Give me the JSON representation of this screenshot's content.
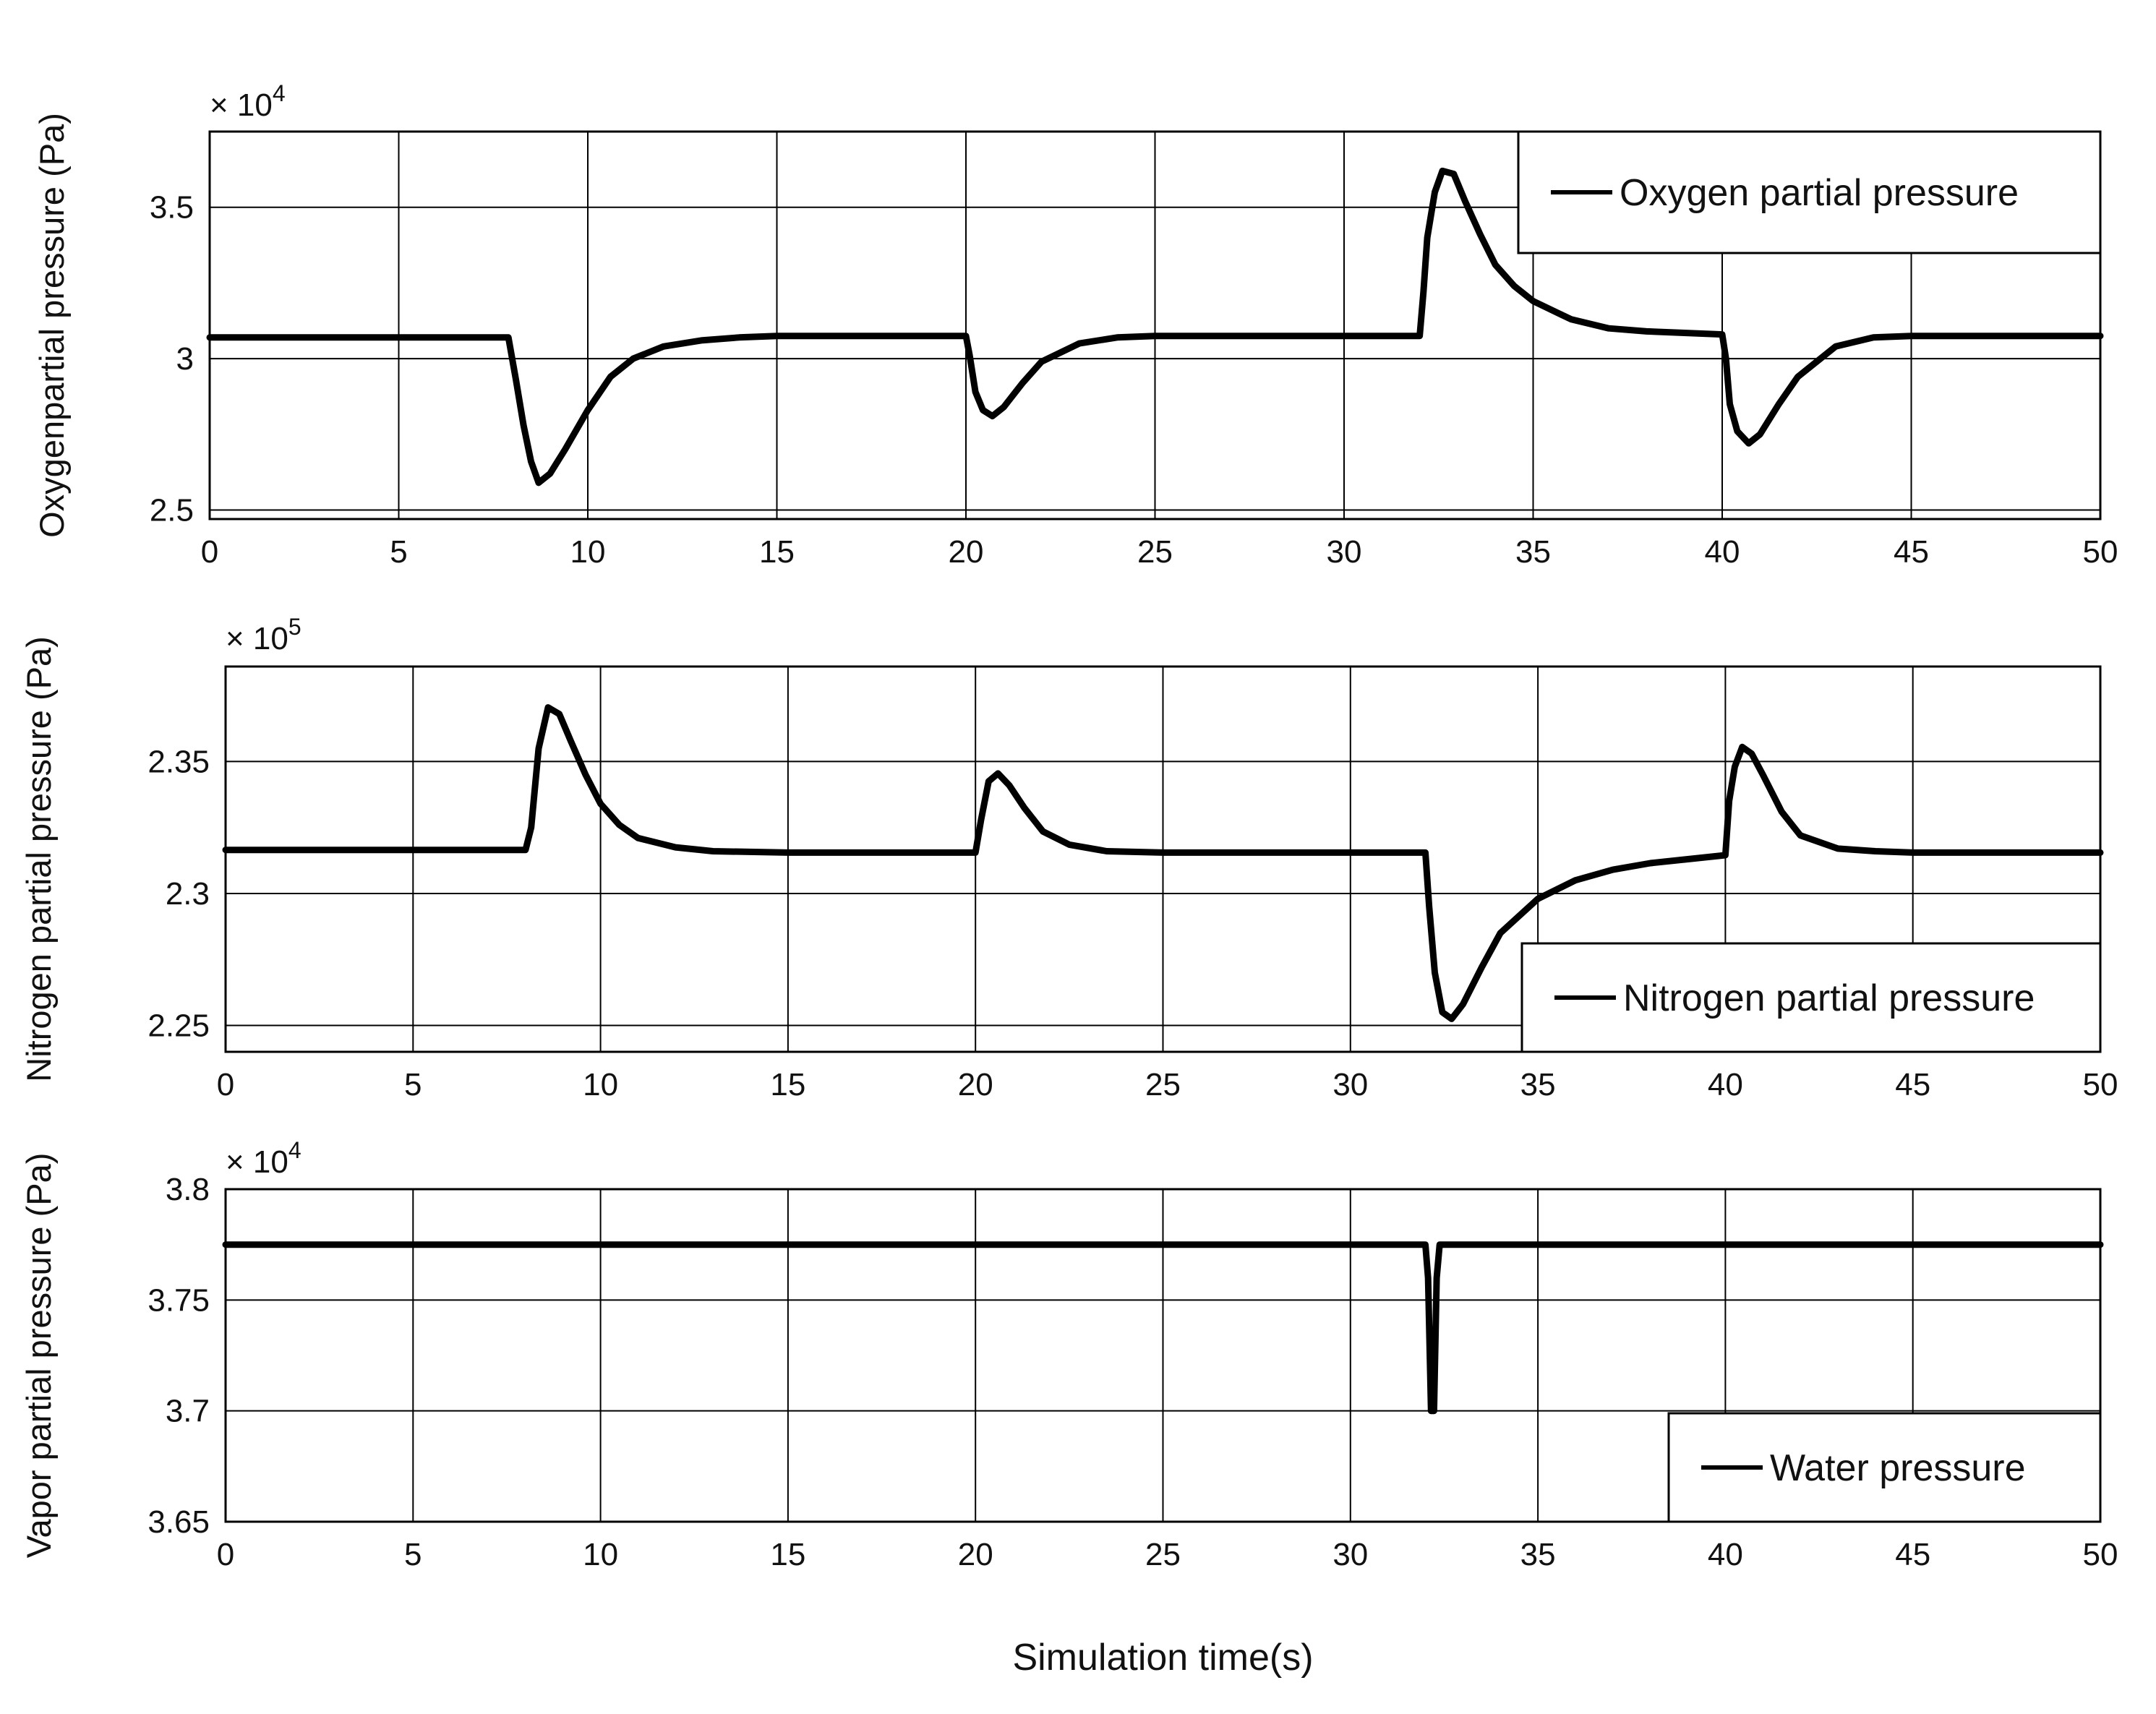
{
  "chart_data": [
    {
      "type": "line",
      "ylabel": "Oxygenpartial pressure (Pa)",
      "multiplier": {
        "base": "× 10",
        "exponent": "4"
      },
      "xlim": [
        0,
        50
      ],
      "ylim": [
        2.47,
        3.75
      ],
      "xticks": [
        "0",
        "5",
        "10",
        "15",
        "20",
        "25",
        "30",
        "35",
        "40",
        "45",
        "50"
      ],
      "yticks": [
        {
          "value": 2.5,
          "label": "2.5"
        },
        {
          "value": 3.0,
          "label": "3"
        },
        {
          "value": 3.5,
          "label": "3.5"
        }
      ],
      "grid": true,
      "legend_position": "top-right",
      "series": [
        {
          "name": "Oxygen partial pressure",
          "x": [
            0,
            7.9,
            8.1,
            8.3,
            8.5,
            8.7,
            9.0,
            9.4,
            10.0,
            10.6,
            11.2,
            12.0,
            13.0,
            14.0,
            15.0,
            20.0,
            20.1,
            20.25,
            20.45,
            20.7,
            21.0,
            21.5,
            22.0,
            23.0,
            24.0,
            25.0,
            32.0,
            32.1,
            32.2,
            32.4,
            32.6,
            32.9,
            33.2,
            33.6,
            34.0,
            34.5,
            35.0,
            36.0,
            37.0,
            38.0,
            39.0,
            40.0,
            40.1,
            40.2,
            40.4,
            40.7,
            41.0,
            41.5,
            42.0,
            43.0,
            44.0,
            45.0,
            50.0
          ],
          "y": [
            3.07,
            3.07,
            2.93,
            2.78,
            2.66,
            2.59,
            2.62,
            2.7,
            2.83,
            2.94,
            3.0,
            3.04,
            3.06,
            3.07,
            3.075,
            3.075,
            3.01,
            2.89,
            2.83,
            2.81,
            2.84,
            2.92,
            2.99,
            3.05,
            3.07,
            3.075,
            3.075,
            3.22,
            3.4,
            3.55,
            3.62,
            3.61,
            3.52,
            3.41,
            3.31,
            3.24,
            3.19,
            3.13,
            3.1,
            3.09,
            3.085,
            3.08,
            3.0,
            2.85,
            2.76,
            2.72,
            2.75,
            2.85,
            2.94,
            3.04,
            3.07,
            3.075,
            3.075
          ]
        }
      ]
    },
    {
      "type": "line",
      "ylabel": "Nitrogen partial pressure (Pa)",
      "multiplier": {
        "base": "× 10",
        "exponent": "5"
      },
      "xlim": [
        0,
        50
      ],
      "ylim": [
        2.24,
        2.386
      ],
      "xticks": [
        "0",
        "5",
        "10",
        "15",
        "20",
        "25",
        "30",
        "35",
        "40",
        "45",
        "50"
      ],
      "yticks": [
        {
          "value": 2.25,
          "label": "2.25"
        },
        {
          "value": 2.3,
          "label": "2.3"
        },
        {
          "value": 2.35,
          "label": "2.35"
        }
      ],
      "grid": true,
      "legend_position": "bottom-right",
      "series": [
        {
          "name": "Nitrogen partial pressure",
          "x": [
            0,
            8.0,
            8.15,
            8.35,
            8.6,
            8.9,
            9.2,
            9.6,
            10.0,
            10.5,
            11.0,
            12.0,
            13.0,
            15.0,
            20.0,
            20.15,
            20.35,
            20.6,
            20.9,
            21.3,
            21.8,
            22.5,
            23.5,
            25.0,
            32.0,
            32.1,
            32.25,
            32.45,
            32.7,
            33.0,
            33.5,
            34.0,
            35.0,
            36.0,
            37.0,
            38.0,
            39.0,
            40.0,
            40.1,
            40.25,
            40.45,
            40.7,
            41.0,
            41.5,
            42.0,
            43.0,
            44.0,
            45.0,
            50.0
          ],
          "y": [
            2.3165,
            2.3165,
            2.325,
            2.355,
            2.3705,
            2.368,
            2.358,
            2.345,
            2.334,
            2.326,
            2.321,
            2.3175,
            2.316,
            2.3155,
            2.3155,
            2.328,
            2.3425,
            2.3455,
            2.341,
            2.3325,
            2.3235,
            2.3185,
            2.316,
            2.3155,
            2.3155,
            2.295,
            2.27,
            2.255,
            2.2525,
            2.258,
            2.272,
            2.285,
            2.298,
            2.305,
            2.309,
            2.3115,
            2.313,
            2.3145,
            2.335,
            2.348,
            2.3555,
            2.353,
            2.345,
            2.331,
            2.322,
            2.317,
            2.316,
            2.3155,
            2.3155
          ]
        }
      ]
    },
    {
      "type": "line",
      "ylabel": "Vapor partial pressure (Pa)",
      "multiplier": {
        "base": "× 10",
        "exponent": "4"
      },
      "xlim": [
        0,
        50
      ],
      "ylim": [
        3.65,
        3.8
      ],
      "xticks": [
        "0",
        "5",
        "10",
        "15",
        "20",
        "25",
        "30",
        "35",
        "40",
        "45",
        "50"
      ],
      "yticks": [
        {
          "value": 3.65,
          "label": "3.65"
        },
        {
          "value": 3.7,
          "label": "3.7"
        },
        {
          "value": 3.75,
          "label": "3.75"
        },
        {
          "value": 3.8,
          "label": "3.8"
        }
      ],
      "grid": true,
      "legend_position": "bottom-right",
      "series": [
        {
          "name": "Water pressure",
          "x": [
            0,
            32.0,
            32.07,
            32.15,
            32.23,
            32.3,
            32.38,
            50.0
          ],
          "y": [
            3.775,
            3.775,
            3.76,
            3.7,
            3.7,
            3.76,
            3.775,
            3.775
          ]
        }
      ]
    }
  ],
  "shared": {
    "xlabel": "Simulation time(s)"
  }
}
